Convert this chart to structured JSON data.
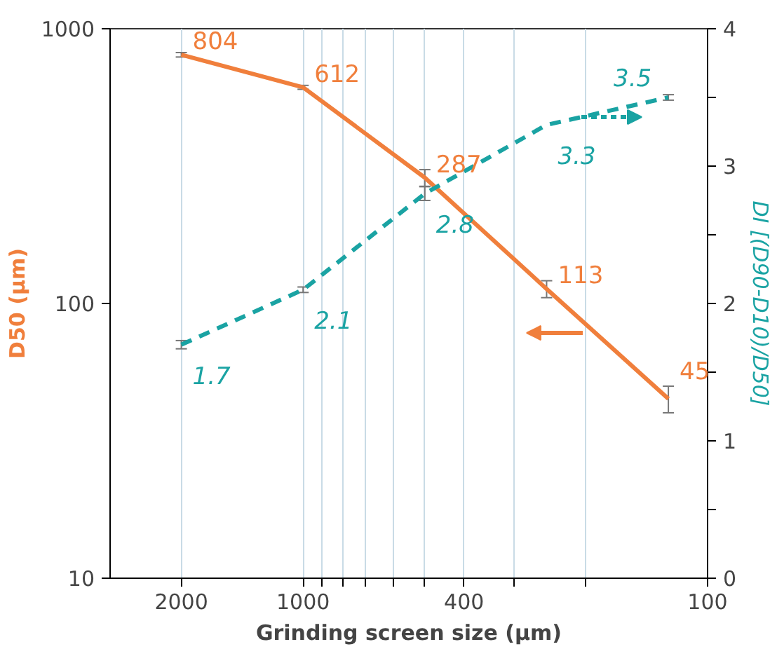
{
  "chart_data": {
    "type": "line",
    "xlabel": "Grinding screen size (µm)",
    "ylabel": "D50 (µm)",
    "y2label": "DI [(D90-D10)/D50]",
    "x": [
      2000,
      1000,
      500,
      250,
      125
    ],
    "log": "xy",
    "xlim": [
      3000,
      100
    ],
    "xticks": [
      2000,
      1000,
      400,
      100,
      {
        "value": 900,
        "label": null
      },
      {
        "value": 800,
        "label": null
      },
      {
        "value": 700,
        "label": null
      },
      {
        "value": 600,
        "label": null
      },
      {
        "value": 500,
        "label": null
      },
      {
        "value": 300,
        "label": null
      },
      {
        "value": 200,
        "label": null
      }
    ],
    "ylim": [
      10,
      1000
    ],
    "yticks": [
      10,
      100,
      1000
    ],
    "y2lim": [
      0,
      4
    ],
    "y2ticks": [
      0,
      1,
      2,
      3,
      4,
      {
        "value": 0.5,
        "label": null
      },
      {
        "value": 1.5,
        "label": null
      },
      {
        "value": 2.5,
        "label": null
      },
      {
        "value": 3.5,
        "label": null
      }
    ],
    "grid": "x",
    "data_labels": true,
    "marker": "none",
    "series": [
      {
        "color": "#f07f3c",
        "values": [
          804,
          612,
          287,
          113,
          45
        ],
        "errors": [
          15,
          10,
          20,
          8,
          5
        ],
        "line_style": "solid"
      },
      {
        "color": "#1aa3a3",
        "values": [
          1.7,
          2.1,
          2.8,
          3.3,
          3.5
        ],
        "errors": [
          0.03,
          0.02,
          0.05,
          null,
          0.02
        ],
        "axis": "y2",
        "line_style": "dashed"
      }
    ]
  }
}
